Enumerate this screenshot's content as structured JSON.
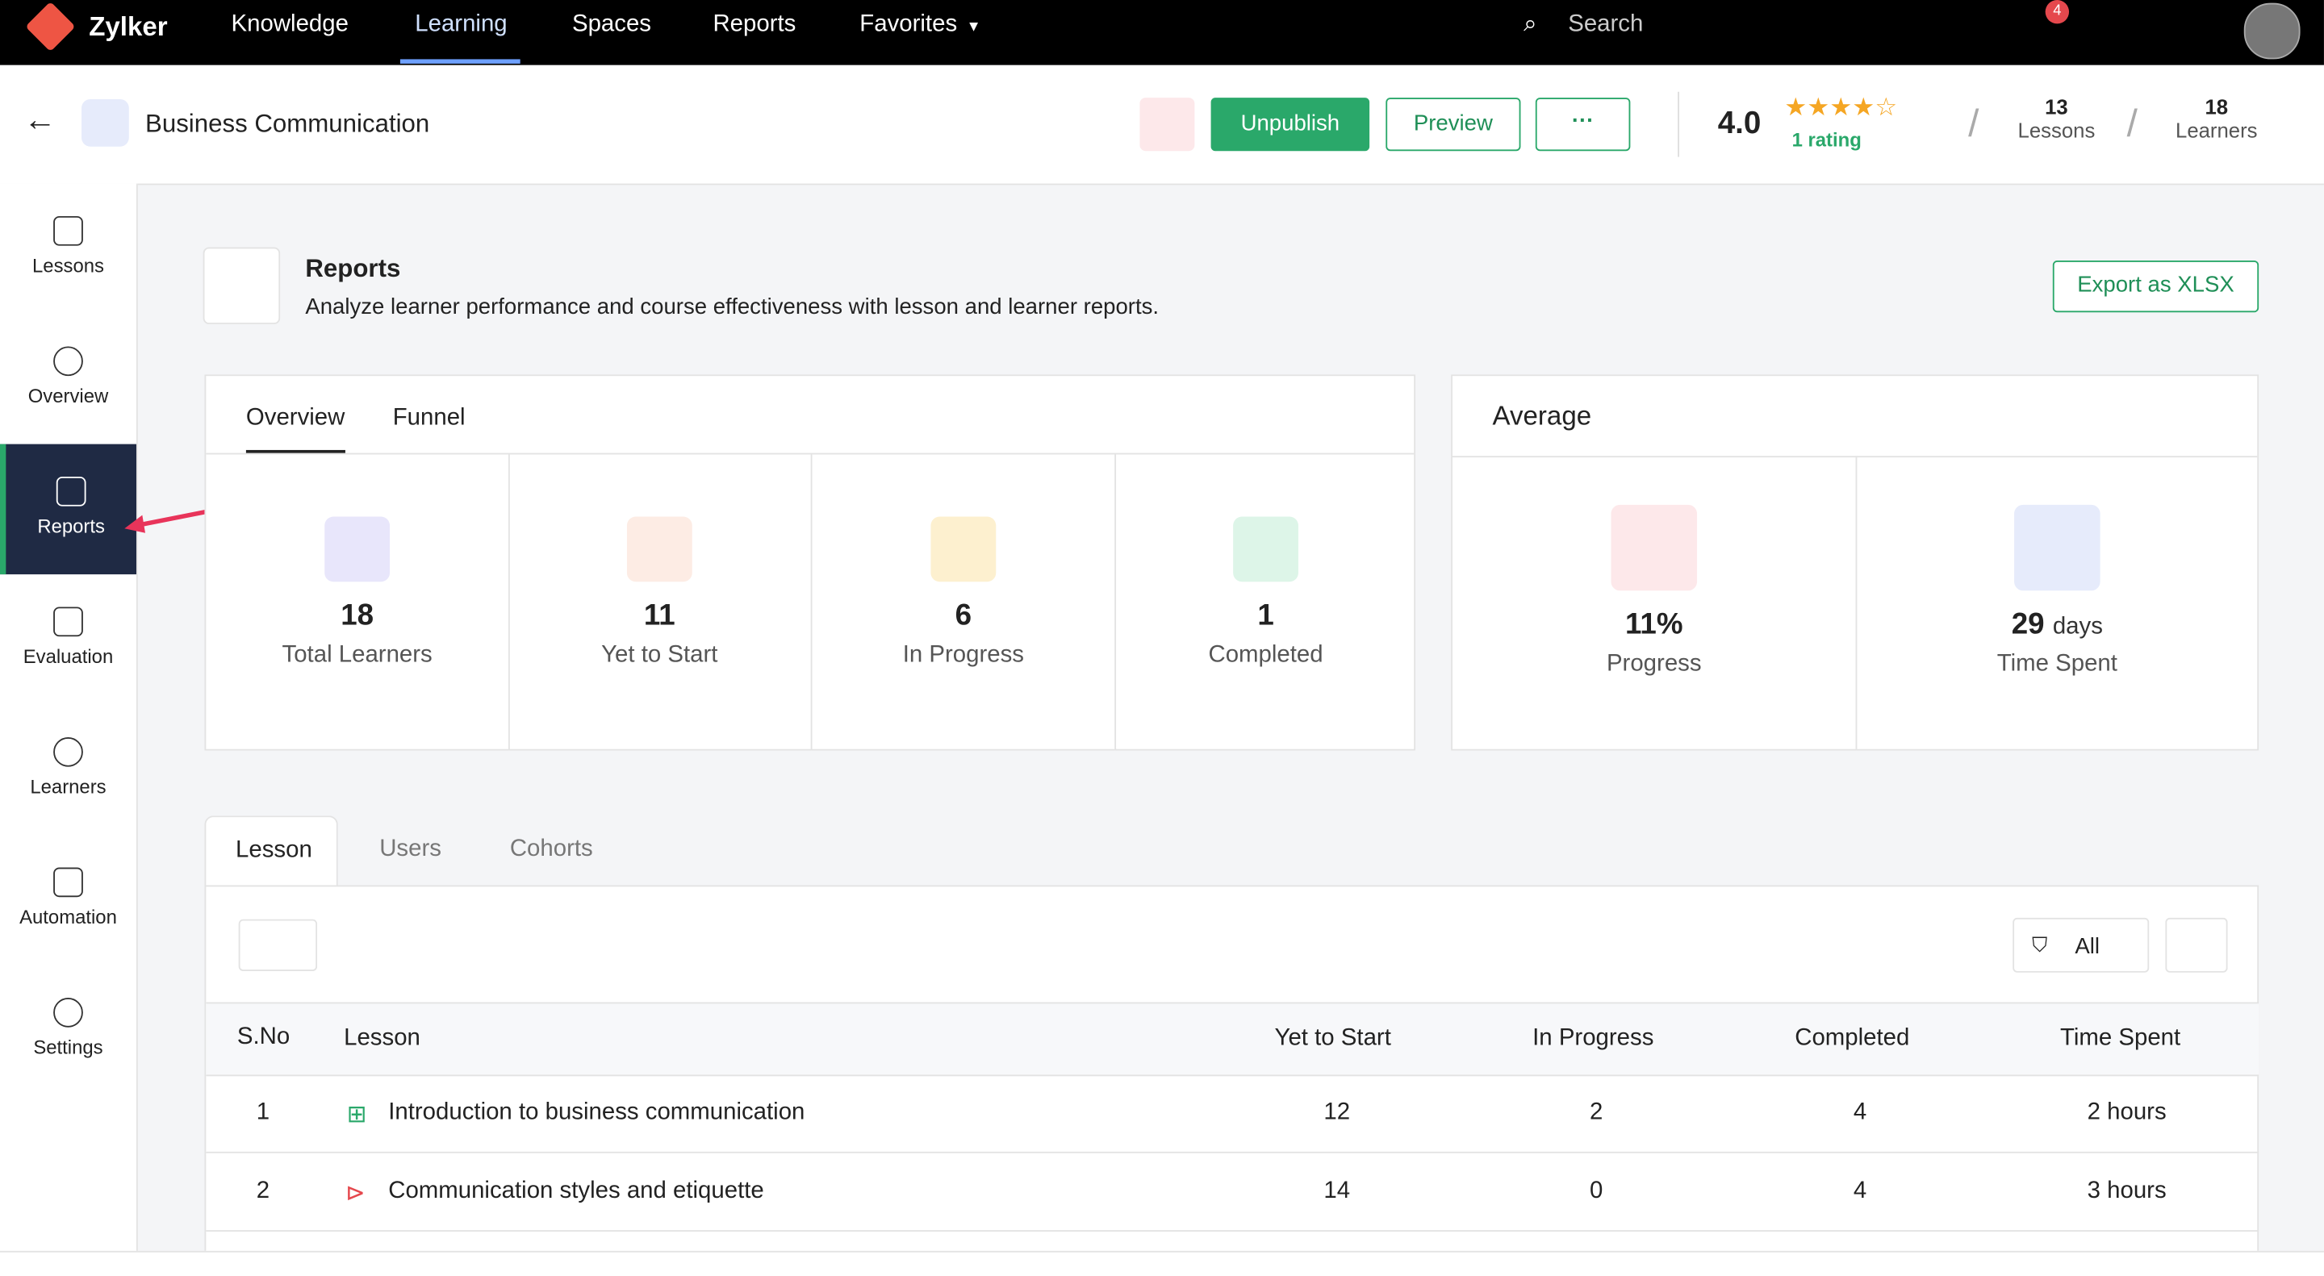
{
  "nav": {
    "brand": "Zylker",
    "items": [
      "Knowledge",
      "Learning",
      "Spaces",
      "Reports",
      "Favorites"
    ],
    "search": "Search",
    "notification_count": "4"
  },
  "header": {
    "title": "Business Communication",
    "buttons": [
      "Unpublish",
      "Preview"
    ],
    "rating": "4.0",
    "rating_count": "1 rating",
    "lessons": {
      "value": "13",
      "label": "Lessons"
    },
    "learners": {
      "value": "18",
      "label": "Learners"
    }
  },
  "sidebar": [
    "Lessons",
    "Overview",
    "Reports",
    "Evaluation",
    "Learners",
    "Automation",
    "Settings"
  ],
  "reports": {
    "title": "Reports",
    "description": "Analyze learner performance and course effectiveness with lesson and learner reports.",
    "export": "Export as XLSX"
  },
  "tabs": [
    "Overview",
    "Funnel"
  ],
  "stats": [
    {
      "value": "18",
      "label": "Total Learners"
    },
    {
      "value": "11",
      "label": "Yet to Start"
    },
    {
      "value": "6",
      "label": "In Progress"
    },
    {
      "value": "1",
      "label": "Completed"
    }
  ],
  "average": {
    "title": "Average",
    "items": [
      {
        "value": "11%",
        "label": "Progress"
      },
      {
        "value": "29",
        "unit": "days",
        "label": "Time Spent"
      }
    ]
  },
  "table_tabs": [
    "Lesson",
    "Users",
    "Cohorts"
  ],
  "filter": "All",
  "table": {
    "columns": [
      "S.No",
      "Lesson",
      "Yet to Start",
      "In Progress",
      "Completed",
      "Time Spent"
    ],
    "rows": [
      [
        "1",
        "Introduction to business communication",
        "12",
        "2",
        "4",
        "2 hours"
      ],
      [
        "2",
        "Communication styles and etiquette",
        "14",
        "0",
        "4",
        "3 hours"
      ]
    ]
  }
}
